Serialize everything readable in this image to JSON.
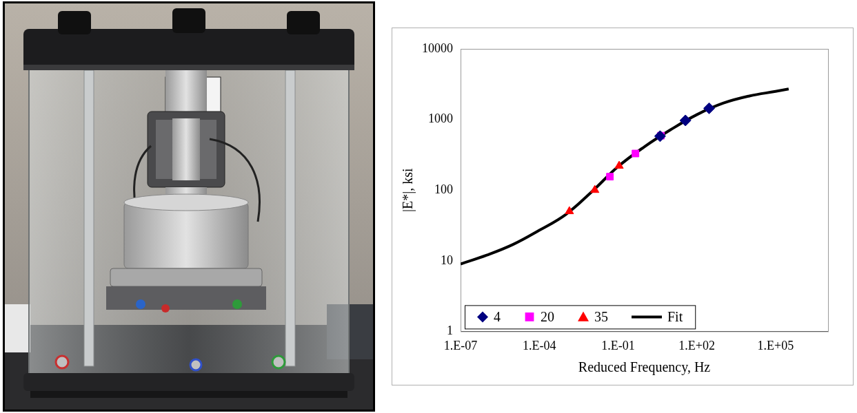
{
  "chart_data": {
    "type": "scatter",
    "x_label": "Reduced Frequency, Hz",
    "y_label": "|E*|, ksi",
    "log": true,
    "grid": false,
    "legend": "lower left",
    "xlim": [
      1e-07,
      10000000.0
    ],
    "xticks": [
      {
        "value": 1e-07,
        "label": "1.E-07"
      },
      {
        "value": 0.0001,
        "label": "1.E-04"
      },
      {
        "value": 0.1,
        "label": "1.E-01"
      },
      {
        "value": 100,
        "label": "1.E+02"
      },
      {
        "value": 100000,
        "label": "1.E+05"
      }
    ],
    "ylim": [
      1,
      10000
    ],
    "yticks": [
      1,
      10,
      100,
      1000,
      10000
    ],
    "series": [
      {
        "name": "4",
        "color": "#000080",
        "marker": "diamond",
        "x": [
          4,
          37,
          295
        ],
        "values": [
          580,
          970,
          1440
        ]
      },
      {
        "name": "20",
        "color": "#FF00FF",
        "marker": "square",
        "x": [
          0.049,
          0.46,
          4.3
        ],
        "values": [
          155,
          330,
          590
        ]
      },
      {
        "name": "35",
        "color": "#FF0000",
        "marker": "triangle",
        "x": [
          0.0014,
          0.013,
          0.11
        ],
        "values": [
          50,
          100,
          220
        ]
      },
      {
        "name": "Fit",
        "color": "#000000",
        "type": "line",
        "marker": "none",
        "line_style": "solid",
        "x": [
          1e-07,
          1e-06,
          1e-05,
          0.0001,
          0.001,
          0.01,
          0.1,
          1,
          10,
          100,
          1000,
          10000,
          100000,
          316000
        ],
        "values": [
          9,
          12,
          17,
          27,
          45,
          95,
          215,
          410,
          715,
          1170,
          1700,
          2150,
          2500,
          2700
        ]
      }
    ]
  }
}
